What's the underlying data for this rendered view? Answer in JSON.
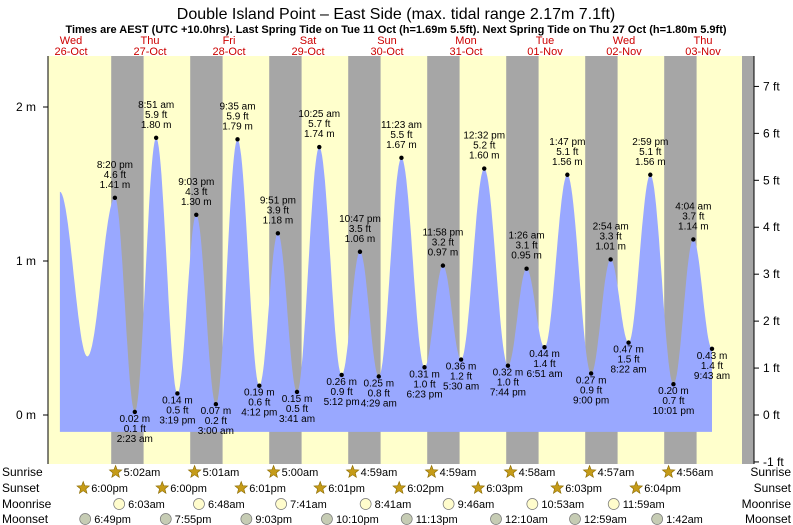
{
  "chart_data": {
    "type": "area",
    "title": "Double Island Point – East Side (max. tidal range 2.17m 7.1ft)",
    "subtitle": "Times are AEST (UTC +10.0hrs). Last Spring Tide on Tue 11 Oct (h=1.69m 5.5ft). Next Spring Tide on Thu 27 Oct (h=1.80m 5.9ft)",
    "left_axis": {
      "unit": "m",
      "ylim": [
        -0.3,
        2.35
      ],
      "ticks": [
        {
          "v": 0,
          "label": "0 m"
        },
        {
          "v": 1,
          "label": "1 m"
        },
        {
          "v": 2,
          "label": "2 m"
        }
      ]
    },
    "right_axis": {
      "unit": "ft",
      "ticks": [
        {
          "v": -1,
          "label": "-1 ft"
        },
        {
          "v": 0,
          "label": "0 ft"
        },
        {
          "v": 1,
          "label": "1 ft"
        },
        {
          "v": 2,
          "label": "2 ft"
        },
        {
          "v": 3,
          "label": "3 ft"
        },
        {
          "v": 4,
          "label": "4 ft"
        },
        {
          "v": 5,
          "label": "5 ft"
        },
        {
          "v": 6,
          "label": "6 ft"
        },
        {
          "v": 7,
          "label": "7 ft"
        }
      ]
    },
    "days": [
      {
        "day": "Wed",
        "date": "26-Oct"
      },
      {
        "day": "Thu",
        "date": "27-Oct"
      },
      {
        "day": "Fri",
        "date": "28-Oct"
      },
      {
        "day": "Sat",
        "date": "29-Oct"
      },
      {
        "day": "Sun",
        "date": "30-Oct"
      },
      {
        "day": "Mon",
        "date": "31-Oct"
      },
      {
        "day": "Tue",
        "date": "01-Nov"
      },
      {
        "day": "Wed",
        "date": "02-Nov"
      },
      {
        "day": "Thu",
        "date": "03-Nov"
      }
    ],
    "x_range_days": [
      0.0,
      8.78
    ],
    "nights": [
      {
        "start": 0.8,
        "end": 1.21
      },
      {
        "start": 1.8,
        "end": 2.21
      },
      {
        "start": 2.8,
        "end": 3.21
      },
      {
        "start": 3.8,
        "end": 4.21
      },
      {
        "start": 4.8,
        "end": 5.21
      },
      {
        "start": 5.8,
        "end": 6.21
      },
      {
        "start": 6.8,
        "end": 7.21
      },
      {
        "start": 7.8,
        "end": 8.21
      },
      {
        "start": 8.8,
        "end": 9.21
      }
    ],
    "series_start": [
      0.15,
      1.45
    ],
    "tides": [
      {
        "t": 0.847,
        "h": 1.41,
        "type": "high",
        "time": "8:20 pm",
        "ft": "4.6 ft",
        "m": "1.41 m"
      },
      {
        "t": 1.099,
        "h": 0.02,
        "type": "low",
        "time": "2:23 am",
        "ft": "0.1 ft",
        "m": "0.02 m"
      },
      {
        "t": 1.369,
        "h": 1.8,
        "type": "high",
        "time": "8:51 am",
        "ft": "5.9 ft",
        "m": "1.80 m"
      },
      {
        "t": 1.638,
        "h": 0.14,
        "type": "low",
        "time": "3:19 pm",
        "ft": "0.5 ft",
        "m": "0.14 m"
      },
      {
        "t": 1.877,
        "h": 1.3,
        "type": "high",
        "time": "9:03 pm",
        "ft": "4.3 ft",
        "m": "1.30 m"
      },
      {
        "t": 2.125,
        "h": 0.07,
        "type": "low",
        "time": "3:00 am",
        "ft": "0.2 ft",
        "m": "0.07 m"
      },
      {
        "t": 2.399,
        "h": 1.79,
        "type": "high",
        "time": "9:35 am",
        "ft": "5.9 ft",
        "m": "1.79 m"
      },
      {
        "t": 2.675,
        "h": 0.19,
        "type": "low",
        "time": "4:12 pm",
        "ft": "0.6 ft",
        "m": "0.19 m"
      },
      {
        "t": 2.91,
        "h": 1.18,
        "type": "high",
        "time": "9:51 pm",
        "ft": "3.9 ft",
        "m": "1.18 m"
      },
      {
        "t": 3.152,
        "h": 0.15,
        "type": "low",
        "time": "3:41 am",
        "ft": "0.5 ft",
        "m": "0.15 m"
      },
      {
        "t": 3.434,
        "h": 1.74,
        "type": "high",
        "time": "10:25 am",
        "ft": "5.7 ft",
        "m": "1.74 m"
      },
      {
        "t": 3.717,
        "h": 0.26,
        "type": "low",
        "time": "5:12 pm",
        "ft": "0.9 ft",
        "m": "0.26 m"
      },
      {
        "t": 3.949,
        "h": 1.06,
        "type": "high",
        "time": "10:47 pm",
        "ft": "3.5 ft",
        "m": "1.06 m"
      },
      {
        "t": 4.187,
        "h": 0.25,
        "type": "low",
        "time": "4:29 am",
        "ft": "0.8 ft",
        "m": "0.25 m"
      },
      {
        "t": 4.474,
        "h": 1.67,
        "type": "high",
        "time": "11:23 am",
        "ft": "5.5 ft",
        "m": "1.67 m"
      },
      {
        "t": 4.766,
        "h": 0.31,
        "type": "low",
        "time": "6:23 pm",
        "ft": "1.0 ft",
        "m": "0.31 m"
      },
      {
        "t": 4.999,
        "h": 0.97,
        "type": "high",
        "time": "11:58 pm",
        "ft": "3.2 ft",
        "m": "0.97 m"
      },
      {
        "t": 5.229,
        "h": 0.36,
        "type": "low",
        "time": "5:30 am",
        "ft": "1.2 ft",
        "m": "0.36 m"
      },
      {
        "t": 5.522,
        "h": 1.6,
        "type": "high",
        "time": "12:32 pm",
        "ft": "5.2 ft",
        "m": "1.60 m"
      },
      {
        "t": 5.822,
        "h": 0.32,
        "type": "low",
        "time": "7:44 pm",
        "ft": "1.0 ft",
        "m": "0.32 m"
      },
      {
        "t": 6.058,
        "h": 0.95,
        "type": "high",
        "time": "1:26 am",
        "ft": "3.1 ft",
        "m": "0.95 m"
      },
      {
        "t": 6.285,
        "h": 0.44,
        "type": "low",
        "time": "6:51 am",
        "ft": "1.4 ft",
        "m": "0.44 m"
      },
      {
        "t": 6.574,
        "h": 1.56,
        "type": "high",
        "time": "1:47 pm",
        "ft": "5.1 ft",
        "m": "1.56 m"
      },
      {
        "t": 6.875,
        "h": 0.27,
        "type": "low",
        "time": "9:00 pm",
        "ft": "0.9 ft",
        "m": "0.27 m"
      },
      {
        "t": 7.122,
        "h": 1.01,
        "type": "high",
        "time": "2:54 am",
        "ft": "3.3 ft",
        "m": "1.01 m"
      },
      {
        "t": 7.349,
        "h": 0.47,
        "type": "low",
        "time": "8:22 am",
        "ft": "1.5 ft",
        "m": "0.47 m"
      },
      {
        "t": 7.624,
        "h": 1.56,
        "type": "high",
        "time": "2:59 pm",
        "ft": "5.1 ft",
        "m": "1.56 m"
      },
      {
        "t": 7.917,
        "h": 0.2,
        "type": "low",
        "time": "10:01 pm",
        "ft": "0.7 ft",
        "m": "0.20 m"
      },
      {
        "t": 8.169,
        "h": 1.14,
        "type": "high",
        "time": "4:04 am",
        "ft": "3.7 ft",
        "m": "1.14 m"
      },
      {
        "t": 8.405,
        "h": 0.43,
        "type": "low",
        "time": "9:43 am",
        "ft": "1.4 ft",
        "m": "0.43 m"
      }
    ],
    "astro_rows": [
      {
        "key": "sunrise",
        "label": "Sunrise",
        "icon": "sun",
        "times": [
          {
            "t": 1.21,
            "time": "5:02am"
          },
          {
            "t": 2.21,
            "time": "5:01am"
          },
          {
            "t": 3.21,
            "time": "5:00am"
          },
          {
            "t": 4.21,
            "time": "4:59am"
          },
          {
            "t": 5.21,
            "time": "4:59am"
          },
          {
            "t": 6.21,
            "time": "4:58am"
          },
          {
            "t": 7.21,
            "time": "4:57am"
          },
          {
            "t": 8.21,
            "time": "4:56am"
          }
        ]
      },
      {
        "key": "sunset",
        "label": "Sunset",
        "icon": "sun",
        "times": [
          {
            "t": 0.8,
            "time": "6:00pm"
          },
          {
            "t": 1.8,
            "time": "6:00pm"
          },
          {
            "t": 2.8,
            "time": "6:01pm"
          },
          {
            "t": 3.8,
            "time": "6:01pm"
          },
          {
            "t": 4.8,
            "time": "6:02pm"
          },
          {
            "t": 5.8,
            "time": "6:03pm"
          },
          {
            "t": 6.8,
            "time": "6:03pm"
          },
          {
            "t": 7.8,
            "time": "6:04pm"
          }
        ]
      },
      {
        "key": "moonrise",
        "label": "Moonrise",
        "icon": "moon-rise",
        "times": [
          {
            "t": 1.23,
            "time": "6:03am"
          },
          {
            "t": 2.24,
            "time": "6:48am"
          },
          {
            "t": 3.28,
            "time": "7:41am"
          },
          {
            "t": 4.35,
            "time": "8:41am"
          },
          {
            "t": 5.4,
            "time": "9:46am"
          },
          {
            "t": 6.46,
            "time": "10:53am"
          },
          {
            "t": 7.49,
            "time": "11:59am"
          }
        ]
      },
      {
        "key": "moonset",
        "label": "Moonset",
        "icon": "moon-set",
        "times": [
          {
            "t": 0.8,
            "time": "6:49pm"
          },
          {
            "t": 1.82,
            "time": "7:55pm"
          },
          {
            "t": 2.84,
            "time": "9:03pm"
          },
          {
            "t": 3.86,
            "time": "10:10pm"
          },
          {
            "t": 4.87,
            "time": "11:13pm"
          },
          {
            "t": 6.0,
            "time": "12:10am"
          },
          {
            "t": 7.0,
            "time": "12:59am"
          },
          {
            "t": 8.04,
            "time": "1:42am"
          }
        ]
      }
    ],
    "colors": {
      "day_bg": "#ffffcc",
      "night_bg": "#a6a6a6",
      "water": "#99a8ff",
      "date_text": "#cc0000",
      "sun": "#c59b18",
      "moonrise": "#fffccc",
      "moonset": "#c6ccb4",
      "right_axis_bg": "#a6a6a6"
    }
  }
}
